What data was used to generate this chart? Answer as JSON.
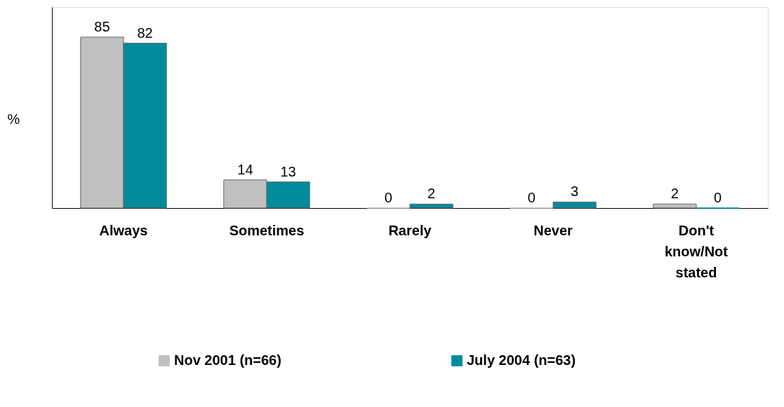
{
  "chart_data": {
    "type": "bar",
    "ylabel": "%",
    "categories": [
      "Always",
      "Sometimes",
      "Rarely",
      "Never",
      "Don't know/Not stated"
    ],
    "series": [
      {
        "name": "Nov 2001 (n=66)",
        "color": "#c0c0c0",
        "values": [
          85,
          14,
          0,
          0,
          2
        ]
      },
      {
        "name": "July 2004 (n=63)",
        "color": "#008b9b",
        "values": [
          82,
          13,
          2,
          3,
          0
        ]
      }
    ],
    "ylim": [
      0,
      100
    ],
    "data_labels": true,
    "legend": "bottom"
  }
}
